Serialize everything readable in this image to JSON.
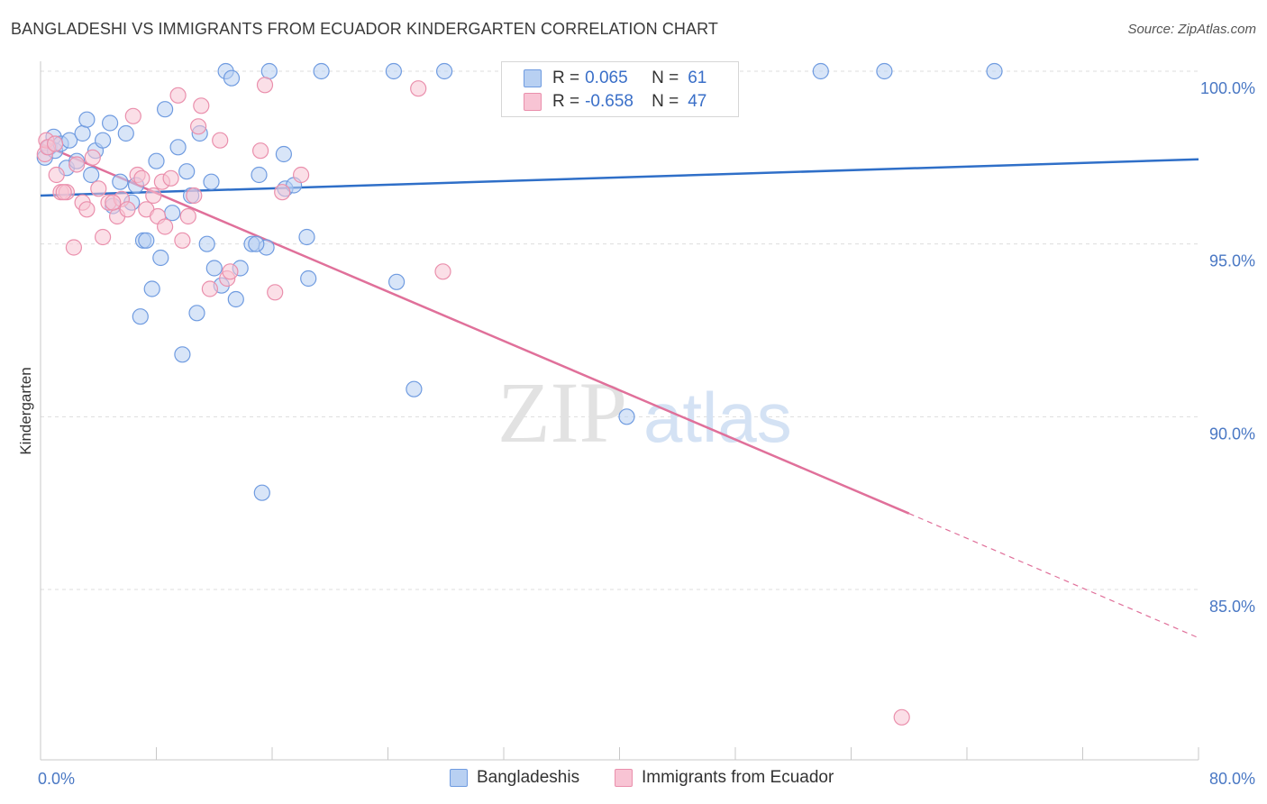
{
  "title": "BANGLADESHI VS IMMIGRANTS FROM ECUADOR KINDERGARTEN CORRELATION CHART",
  "source": "Source: ZipAtlas.com",
  "watermark": {
    "zip": "ZIP",
    "atlas": "atlas"
  },
  "colors": {
    "blue_fill": "#b8d0f2",
    "blue_stroke": "#6f9be0",
    "blue_line": "#2f6fc8",
    "pink_fill": "#f8c4d4",
    "pink_stroke": "#ea8fac",
    "pink_line": "#e0709a",
    "tick_text": "#4a78c4",
    "grid": "#dddddd"
  },
  "legend": {
    "rows": [
      {
        "r_label": "R =",
        "r_value": "0.065",
        "n_label": "N =",
        "n_value": "61"
      },
      {
        "r_label": "R =",
        "r_value": "-0.658",
        "n_label": "N =",
        "n_value": "47"
      }
    ]
  },
  "chart_data": {
    "type": "scatter",
    "title": "BANGLADESHI VS IMMIGRANTS FROM ECUADOR KINDERGARTEN CORRELATION CHART",
    "xlabel": "",
    "ylabel": "Kindergarten",
    "xlim": [
      0,
      80
    ],
    "ylim": [
      80.5,
      101.2
    ],
    "x_ticks": [
      0,
      8,
      16,
      24,
      32,
      40,
      48,
      56,
      64,
      72,
      80
    ],
    "x_tick_labels": [
      {
        "value": 0,
        "label": "0.0%"
      },
      {
        "value": 80,
        "label": "80.0%"
      }
    ],
    "y_ticks": [
      {
        "value": 100,
        "label": "100.0%"
      },
      {
        "value": 95,
        "label": "95.0%"
      },
      {
        "value": 90,
        "label": "90.0%"
      },
      {
        "value": 85,
        "label": "85.0%"
      }
    ],
    "grid": true,
    "legend_position": "bottom",
    "series": [
      {
        "name": "Bangladeshis",
        "color": "#b8d0f2",
        "trend": {
          "x_start": 0,
          "y_start": 96.4,
          "x_end": 80,
          "y_end": 97.45,
          "dashed_from_x": 80
        },
        "points": [
          [
            0.3,
            97.5
          ],
          [
            0.6,
            97.8
          ],
          [
            0.9,
            98.1
          ],
          [
            1.0,
            97.7
          ],
          [
            1.4,
            97.9
          ],
          [
            1.8,
            97.2
          ],
          [
            2.0,
            98.0
          ],
          [
            2.5,
            97.4
          ],
          [
            2.9,
            98.2
          ],
          [
            3.2,
            98.6
          ],
          [
            3.5,
            97.0
          ],
          [
            3.8,
            97.7
          ],
          [
            4.3,
            98.0
          ],
          [
            4.8,
            98.5
          ],
          [
            5.0,
            96.1
          ],
          [
            5.5,
            96.8
          ],
          [
            5.9,
            98.2
          ],
          [
            6.3,
            96.2
          ],
          [
            6.6,
            96.7
          ],
          [
            6.9,
            92.9
          ],
          [
            7.1,
            95.1
          ],
          [
            7.3,
            95.1
          ],
          [
            7.7,
            93.7
          ],
          [
            8.0,
            97.4
          ],
          [
            8.3,
            94.6
          ],
          [
            8.6,
            98.9
          ],
          [
            9.1,
            95.9
          ],
          [
            9.5,
            97.8
          ],
          [
            9.8,
            91.8
          ],
          [
            10.1,
            97.1
          ],
          [
            10.4,
            96.4
          ],
          [
            10.8,
            93.0
          ],
          [
            11.0,
            98.2
          ],
          [
            11.5,
            95.0
          ],
          [
            11.8,
            96.8
          ],
          [
            12.0,
            94.3
          ],
          [
            12.5,
            93.8
          ],
          [
            12.8,
            100.0
          ],
          [
            13.2,
            99.8
          ],
          [
            13.5,
            93.4
          ],
          [
            13.8,
            94.3
          ],
          [
            14.6,
            95.0
          ],
          [
            15.1,
            97.0
          ],
          [
            15.3,
            87.8
          ],
          [
            15.6,
            94.9
          ],
          [
            15.8,
            100.0
          ],
          [
            16.8,
            97.6
          ],
          [
            16.9,
            96.6
          ],
          [
            17.5,
            96.7
          ],
          [
            18.4,
            95.2
          ],
          [
            18.5,
            94.0
          ],
          [
            19.4,
            100.0
          ],
          [
            24.4,
            100.0
          ],
          [
            24.6,
            93.9
          ],
          [
            25.8,
            90.8
          ],
          [
            27.9,
            100.0
          ],
          [
            40.5,
            90.0
          ],
          [
            53.9,
            100.0
          ],
          [
            58.3,
            100.0
          ],
          [
            65.9,
            100.0
          ],
          [
            14.9,
            95.0
          ]
        ]
      },
      {
        "name": "Immigrants from Ecuador",
        "color": "#f8c4d4",
        "trend": {
          "x_start": 0,
          "y_start": 97.9,
          "x_end": 60,
          "y_end": 87.2,
          "dashed_to_x": 80,
          "dashed_to_y": 83.6
        },
        "points": [
          [
            0.3,
            97.6
          ],
          [
            0.4,
            98.0
          ],
          [
            0.5,
            97.8
          ],
          [
            1.0,
            97.9
          ],
          [
            1.1,
            97.0
          ],
          [
            1.4,
            96.5
          ],
          [
            1.8,
            96.5
          ],
          [
            2.3,
            94.9
          ],
          [
            2.5,
            97.3
          ],
          [
            2.9,
            96.2
          ],
          [
            3.2,
            96.0
          ],
          [
            3.6,
            97.5
          ],
          [
            4.0,
            96.6
          ],
          [
            4.3,
            95.2
          ],
          [
            4.7,
            96.2
          ],
          [
            5.3,
            95.8
          ],
          [
            5.6,
            96.3
          ],
          [
            6.0,
            96.0
          ],
          [
            6.4,
            98.7
          ],
          [
            6.7,
            97.0
          ],
          [
            7.0,
            96.9
          ],
          [
            7.3,
            96.0
          ],
          [
            7.8,
            96.4
          ],
          [
            8.1,
            95.8
          ],
          [
            8.4,
            96.8
          ],
          [
            8.6,
            95.5
          ],
          [
            9.0,
            96.9
          ],
          [
            9.5,
            99.3
          ],
          [
            9.8,
            95.1
          ],
          [
            10.2,
            95.8
          ],
          [
            10.6,
            96.4
          ],
          [
            10.9,
            98.4
          ],
          [
            11.1,
            99.0
          ],
          [
            11.7,
            93.7
          ],
          [
            12.4,
            98.0
          ],
          [
            12.9,
            94.0
          ],
          [
            13.1,
            94.2
          ],
          [
            15.2,
            97.7
          ],
          [
            15.5,
            99.6
          ],
          [
            16.2,
            93.6
          ],
          [
            16.7,
            96.5
          ],
          [
            18.0,
            97.0
          ],
          [
            26.1,
            99.5
          ],
          [
            27.8,
            94.2
          ],
          [
            59.5,
            81.3
          ],
          [
            5.0,
            96.2
          ],
          [
            1.6,
            96.5
          ]
        ]
      }
    ]
  }
}
